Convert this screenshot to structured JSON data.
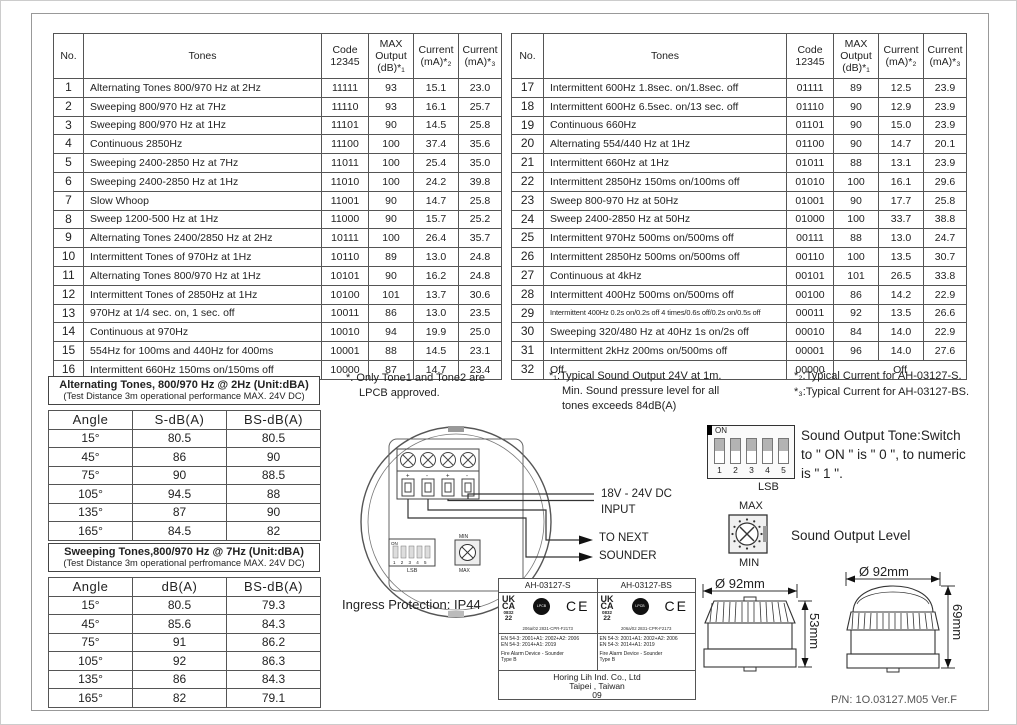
{
  "page": {
    "pn": "P/N: 1O.03127.M05  Ver.F"
  },
  "tone_table": {
    "headers": {
      "no": "No.",
      "tones": "Tones",
      "code": "Code 12345",
      "output": "MAX Output (dB)*₁",
      "current2": "Current (mA)*₂",
      "current3": "Current (mA)*₃"
    },
    "left_rows": [
      [
        "1",
        "Alternating Tones 800/970 Hz at 2Hz",
        "11111",
        "93",
        "15.1",
        "23.0"
      ],
      [
        "2",
        "Sweeping 800/970 Hz at 7Hz",
        "11110",
        "93",
        "16.1",
        "25.7"
      ],
      [
        "3",
        "Sweeping 800/970 Hz at 1Hz",
        "11101",
        "90",
        "14.5",
        "25.8"
      ],
      [
        "4",
        "Continuous 2850Hz",
        "11100",
        "100",
        "37.4",
        "35.6"
      ],
      [
        "5",
        "Sweeping 2400-2850 Hz at 7Hz",
        "11011",
        "100",
        "25.4",
        "35.0"
      ],
      [
        "6",
        "Sweeping 2400-2850 Hz at 1Hz",
        "11010",
        "100",
        "24.2",
        "39.8"
      ],
      [
        "7",
        "Slow Whoop",
        "11001",
        "90",
        "14.7",
        "25.8"
      ],
      [
        "8",
        "Sweep 1200-500 Hz at 1Hz",
        "11000",
        "90",
        "15.7",
        "25.2"
      ],
      [
        "9",
        "Alternating Tones 2400/2850 Hz at 2Hz",
        "10111",
        "100",
        "26.4",
        "35.7"
      ],
      [
        "10",
        "Intermittent Tones of 970Hz at 1Hz",
        "10110",
        "89",
        "13.0",
        "24.8"
      ],
      [
        "11",
        "Alternating Tones 800/970 Hz at 1Hz",
        "10101",
        "90",
        "16.2",
        "24.8"
      ],
      [
        "12",
        "Intermittent Tones of 2850Hz at 1Hz",
        "10100",
        "101",
        "13.7",
        "30.6"
      ],
      [
        "13",
        "970Hz at 1/4 sec. on, 1 sec. off",
        "10011",
        "86",
        "13.0",
        "23.5"
      ],
      [
        "14",
        "Continuous at 970Hz",
        "10010",
        "94",
        "19.9",
        "25.0"
      ],
      [
        "15",
        "554Hz for 100ms and 440Hz for 400ms",
        "10001",
        "88",
        "14.5",
        "23.1"
      ],
      [
        "16",
        "Intermittent 660Hz 150ms on/150ms off",
        "10000",
        "87",
        "14.7",
        "23.4"
      ]
    ],
    "right_rows": [
      [
        "17",
        "Intermittent 600Hz 1.8sec. on/1.8sec. off",
        "01111",
        "89",
        "12.5",
        "23.9"
      ],
      [
        "18",
        "Intermittent 600Hz 6.5sec. on/13 sec. off",
        "01110",
        "90",
        "12.9",
        "23.9"
      ],
      [
        "19",
        "Continuous 660Hz",
        "01101",
        "90",
        "15.0",
        "23.9"
      ],
      [
        "20",
        "Alternating 554/440 Hz at 1Hz",
        "01100",
        "90",
        "14.7",
        "20.1"
      ],
      [
        "21",
        "Intermittent 660Hz at 1Hz",
        "01011",
        "88",
        "13.1",
        "23.9"
      ],
      [
        "22",
        "Intermittent 2850Hz 150ms on/100ms off",
        "01010",
        "100",
        "16.1",
        "29.6"
      ],
      [
        "23",
        "Sweep 800-970 Hz at 50Hz",
        "01001",
        "90",
        "17.7",
        "25.8"
      ],
      [
        "24",
        "Sweep 2400-2850 Hz at 50Hz",
        "01000",
        "100",
        "33.7",
        "38.8"
      ],
      [
        "25",
        "Intermittent 970Hz 500ms on/500ms off",
        "00111",
        "88",
        "13.0",
        "24.7"
      ],
      [
        "26",
        "Intermittent 2850Hz 500ms on/500ms off",
        "00110",
        "100",
        "13.5",
        "30.7"
      ],
      [
        "27",
        "Continuous at 4kHz",
        "00101",
        "101",
        "26.5",
        "33.8"
      ],
      [
        "28",
        "Intermittent 400Hz 500ms on/500ms off",
        "00100",
        "86",
        "14.2",
        "22.9"
      ],
      [
        "29",
        "Intermittent 400Hz 0.2s on/0.2s off 4 times/0.6s off/0.2s on/0.5s off",
        "00011",
        "92",
        "13.5",
        "26.6"
      ],
      [
        "30",
        "Sweeping 320/480 Hz at 40Hz 1s on/2s off",
        "00010",
        "84",
        "14.0",
        "22.9"
      ],
      [
        "31",
        "Intermittent 2kHz 200ms on/500ms off",
        "00001",
        "96",
        "14.0",
        "27.6"
      ],
      [
        "32",
        "Off",
        "00000",
        {
          "text": "Off",
          "colspan": 3
        }
      ]
    ]
  },
  "alt_table": {
    "title": "Alternating Tones, 800/970 Hz @ 2Hz (Unit:dBA)",
    "subtitle": "(Test Distance 3m operational performance MAX. 24V DC)",
    "headers": [
      "Angle",
      "S-dB(A)",
      "BS-dB(A)"
    ],
    "rows": [
      [
        "15°",
        "80.5",
        "80.5"
      ],
      [
        "45°",
        "86",
        "90"
      ],
      [
        "75°",
        "90",
        "88.5"
      ],
      [
        "105°",
        "94.5",
        "88"
      ],
      [
        "135°",
        "87",
        "90"
      ],
      [
        "165°",
        "84.5",
        "82"
      ]
    ]
  },
  "sweep_table": {
    "title": "Sweeping Tones,800/970 Hz @ 7Hz (Unit:dBA)",
    "subtitle": "(Test Distance 3m operational perfromance MAX. 24V DC)",
    "headers": [
      "Angle",
      "dB(A)",
      "BS-dB(A)"
    ],
    "rows": [
      [
        "15°",
        "80.5",
        "79.3"
      ],
      [
        "45°",
        "85.6",
        "84.3"
      ],
      [
        "75°",
        "91",
        "86.2"
      ],
      [
        "105°",
        "92",
        "86.3"
      ],
      [
        "135°",
        "86",
        "84.3"
      ],
      [
        "165°",
        "82",
        "79.1"
      ]
    ]
  },
  "notes": {
    "star_line1": "*. Only Tone1 and Tone2 are",
    "star_line2": "LPCB approved.",
    "n1_line1": "*₁:Typical Sound Output 24V at 1m.",
    "n1_line2": "Min. Sound pressure level for all",
    "n1_line3": "tones exceeds 84dB(A)",
    "n2": "*₂:Typical Current for AH-03127-S.",
    "n3": "*₃:Typical Current for AH-03127-BS."
  },
  "diagram": {
    "dc_label_line1": "18V - 24V DC",
    "dc_label_line2": "INPUT",
    "next_line1": "TO NEXT",
    "next_line2": "SOUNDER",
    "ingress": "Ingress Protection: IP44",
    "dip_on": "ON",
    "dip_numbers": "1 2 3 4 5",
    "dip_lsb": "LSB",
    "rot_min": "MIN",
    "rot_max": "MAX",
    "terminal_signs": [
      "+",
      "-",
      "+",
      "-"
    ]
  },
  "switch_panel": {
    "dip": {
      "on": "ON",
      "numbers": [
        "1",
        "2",
        "3",
        "4",
        "5"
      ],
      "lsb": "LSB"
    },
    "tone_text_line1": "Sound Output Tone:Switch",
    "tone_text_line2": "to \" ON \" is \" 0 \", to numeric",
    "tone_text_line3": "is \" 1 \".",
    "rotary": {
      "max": "MAX",
      "min": "MIN",
      "label": "Sound Output Level"
    }
  },
  "cert": {
    "models": [
      "AH-03127-S",
      "AH-03127-BS"
    ],
    "ukca_lines": [
      "UK",
      "CA",
      "0832",
      "22"
    ],
    "lpcb": "LPCB",
    "ce": "CE",
    "cert_no": "206a/02  2831-CPR-F2173",
    "std_lines": [
      "EN 54-3: 2001+A1: 2002+A2: 2006",
      "EN 54-3: 2014+A1: 2019",
      "Fire Alarm Device - Sounder",
      "Type B"
    ],
    "footer_lines": [
      "Horing Lih Ind. Co., Ltd",
      "Taipei , Taiwan",
      "09"
    ]
  },
  "dimensions": {
    "a": {
      "dia": "Ø 92mm",
      "h": "53mm"
    },
    "b": {
      "dia": "Ø 92mm",
      "h": "69mm"
    }
  }
}
